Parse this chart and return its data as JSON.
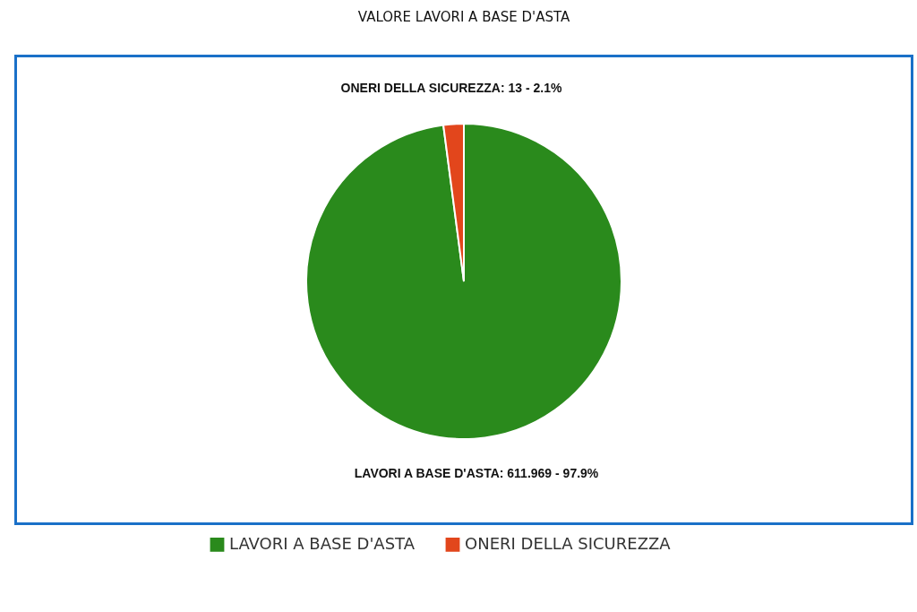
{
  "chart_data": {
    "type": "pie",
    "title": "VALORE LAVORI A BASE D'ASTA",
    "categories": [
      "LAVORI A BASE D'ASTA",
      "ONERI DELLA SICUREZZA"
    ],
    "values": [
      611.969,
      13
    ],
    "colors": [
      "#2a8a1c",
      "#e2461c"
    ],
    "value_labels": [
      "LAVORI A BASE D'ASTA: 611.969 - 97.9%",
      "ONERI DELLA SICUREZZA: 13 - 2.1%"
    ],
    "legend": "bottom"
  }
}
